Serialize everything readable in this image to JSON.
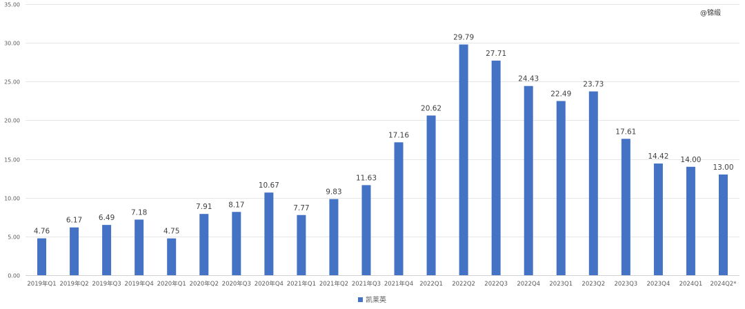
{
  "watermark": "@锦缎",
  "chart_data": {
    "type": "bar",
    "title": "",
    "xlabel": "",
    "ylabel": "",
    "ylim": [
      0,
      35
    ],
    "ytick_step": 5,
    "ytick_labels": [
      "0.00",
      "5.00",
      "10.00",
      "15.00",
      "20.00",
      "25.00",
      "30.00",
      "35.00"
    ],
    "grid": true,
    "legend_position": "bottom-center",
    "categories": [
      "2019年Q1",
      "2019年Q2",
      "2019年Q3",
      "2019年Q4",
      "2020年Q1",
      "2020年Q2",
      "2020年Q3",
      "2020年Q4",
      "2021年Q1",
      "2021年Q2",
      "2021年Q3",
      "2021年Q4",
      "2022Q1",
      "2022Q2",
      "2022Q3",
      "2022Q4",
      "2023Q1",
      "2023Q2",
      "2023Q3",
      "2023Q4",
      "2024Q1",
      "2024Q2*"
    ],
    "series": [
      {
        "name": "凯莱英",
        "color": "#4472c4",
        "values": [
          4.76,
          6.17,
          6.49,
          7.18,
          4.75,
          7.91,
          8.17,
          10.67,
          7.77,
          9.83,
          11.63,
          17.16,
          20.62,
          29.79,
          27.71,
          24.43,
          22.49,
          23.73,
          17.61,
          14.42,
          14.0,
          13.0
        ],
        "value_labels": [
          "4.76",
          "6.17",
          "6.49",
          "7.18",
          "4.75",
          "7.91",
          "8.17",
          "10.67",
          "7.77",
          "9.83",
          "11.63",
          "17.16",
          "20.62",
          "29.79",
          "27.71",
          "24.43",
          "22.49",
          "23.73",
          "17.61",
          "14.42",
          "14.00",
          "13.00"
        ]
      }
    ]
  }
}
